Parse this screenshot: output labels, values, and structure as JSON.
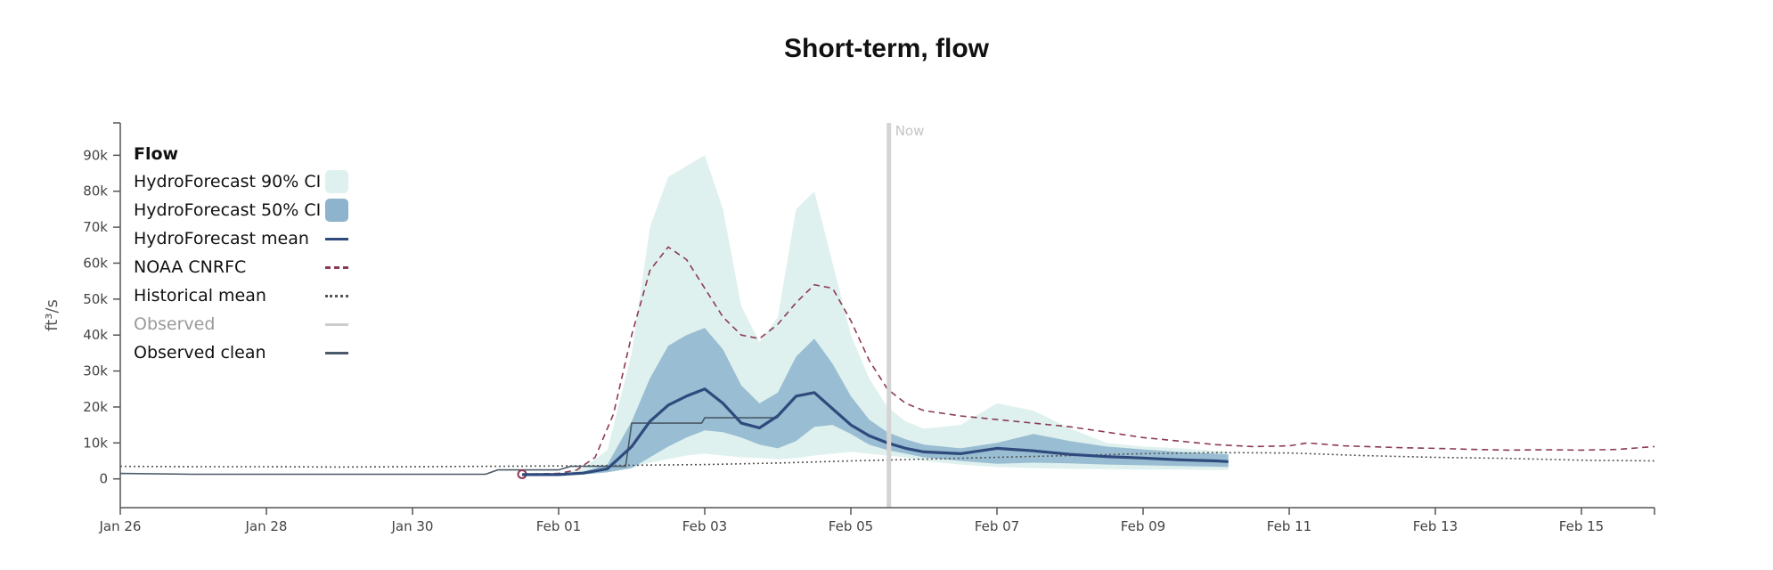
{
  "title": "Short-term, flow",
  "colors": {
    "ci90": "#dff1ee",
    "ci50": "#8db4cc",
    "mean": "#2f4a7c",
    "noaa": "#8b3a55",
    "historical": "#555555",
    "observed": "#cccccc",
    "observed_clean": "#4a5a68",
    "now_line": "#d4d4d4",
    "axis": "#555555"
  },
  "legend": {
    "title": "Flow",
    "items": [
      {
        "label": "HydroForecast 90% CI",
        "style": "box-light"
      },
      {
        "label": "HydroForecast 50% CI",
        "style": "box-dark"
      },
      {
        "label": "HydroForecast mean",
        "style": "solid"
      },
      {
        "label": "NOAA CNRFC",
        "style": "dashed"
      },
      {
        "label": "Historical mean",
        "style": "dotted"
      },
      {
        "label": "Observed",
        "style": "solid-light"
      },
      {
        "label": "Observed clean",
        "style": "solid-dark"
      }
    ]
  },
  "chart_data": {
    "type": "line",
    "title": "Short-term, flow",
    "ylabel": "ft³/s",
    "xlabel": "",
    "xlim": [
      "2024-01-26",
      "2024-02-16"
    ],
    "ylim": [
      -8000,
      99000
    ],
    "y_ticks": [
      0,
      10000,
      20000,
      30000,
      40000,
      50000,
      60000,
      70000,
      80000,
      90000
    ],
    "y_tick_labels": [
      "0",
      "10k",
      "20k",
      "30k",
      "40k",
      "50k",
      "60k",
      "70k",
      "80k",
      "90k"
    ],
    "x_ticks": [
      "2024-01-26",
      "2024-01-28",
      "2024-01-30",
      "2024-02-01",
      "2024-02-03",
      "2024-02-05",
      "2024-02-07",
      "2024-02-09",
      "2024-02-11",
      "2024-02-13",
      "2024-02-15"
    ],
    "x_tick_labels": [
      "Jan 26",
      "Jan 28",
      "Jan 30",
      "Feb 01",
      "Feb 03",
      "Feb 05",
      "Feb 07",
      "Feb 09",
      "Feb 11",
      "Feb 13",
      "Feb 15"
    ],
    "now": {
      "x": "2024-02-05T12:30",
      "label": "Now"
    },
    "legend_position": "top-left",
    "grid": false,
    "series": [
      {
        "name": "HydroForecast 90% CI",
        "kind": "band",
        "x": [
          "2024-01-31T12:00",
          "2024-02-01T00:00",
          "2024-02-01T08:00",
          "2024-02-01T16:00",
          "2024-02-02T00:00",
          "2024-02-02T06:00",
          "2024-02-02T12:00",
          "2024-02-02T18:00",
          "2024-02-03T00:00",
          "2024-02-03T06:00",
          "2024-02-03T12:00",
          "2024-02-03T18:00",
          "2024-02-04T00:00",
          "2024-02-04T06:00",
          "2024-02-04T12:00",
          "2024-02-04T18:00",
          "2024-02-05T00:00",
          "2024-02-05T06:00",
          "2024-02-05T12:00",
          "2024-02-05T18:00",
          "2024-02-06T00:00",
          "2024-02-06T12:00",
          "2024-02-07T00:00",
          "2024-02-07T12:00",
          "2024-02-08T00:00",
          "2024-02-08T12:00",
          "2024-02-09T00:00",
          "2024-02-09T12:00",
          "2024-02-10T00:00",
          "2024-02-10T04:00"
        ],
        "lower": [
          1000,
          1000,
          1500,
          2000,
          3000,
          4500,
          5500,
          6500,
          7000,
          6500,
          6000,
          5800,
          5500,
          5800,
          6500,
          7000,
          7500,
          7000,
          6500,
          6000,
          5000,
          4000,
          3300,
          3000,
          2800,
          2700,
          2600,
          2600,
          2500,
          2500
        ],
        "upper": [
          1000,
          1500,
          3000,
          8000,
          35000,
          70000,
          84000,
          87000,
          90000,
          75000,
          48000,
          38000,
          45000,
          75000,
          80000,
          60000,
          40000,
          28000,
          20000,
          16000,
          14000,
          15000,
          21000,
          19000,
          14000,
          10000,
          9000,
          8500,
          7800,
          7500
        ]
      },
      {
        "name": "HydroForecast 50% CI",
        "kind": "band",
        "x": [
          "2024-01-31T12:00",
          "2024-02-01T00:00",
          "2024-02-01T08:00",
          "2024-02-01T16:00",
          "2024-02-02T00:00",
          "2024-02-02T06:00",
          "2024-02-02T12:00",
          "2024-02-02T18:00",
          "2024-02-03T00:00",
          "2024-02-03T06:00",
          "2024-02-03T12:00",
          "2024-02-03T18:00",
          "2024-02-04T00:00",
          "2024-02-04T06:00",
          "2024-02-04T12:00",
          "2024-02-04T18:00",
          "2024-02-05T00:00",
          "2024-02-05T06:00",
          "2024-02-05T12:00",
          "2024-02-05T18:00",
          "2024-02-06T00:00",
          "2024-02-06T12:00",
          "2024-02-07T00:00",
          "2024-02-07T12:00",
          "2024-02-08T00:00",
          "2024-02-08T12:00",
          "2024-02-09T00:00",
          "2024-02-09T12:00",
          "2024-02-10T00:00",
          "2024-02-10T04:00"
        ],
        "lower": [
          1000,
          1000,
          1200,
          1800,
          3000,
          6000,
          9000,
          11500,
          13500,
          13000,
          11500,
          9500,
          8500,
          10500,
          14500,
          15000,
          12500,
          9500,
          8000,
          7000,
          6000,
          5000,
          4200,
          4500,
          4300,
          4000,
          3800,
          3600,
          3400,
          3300
        ],
        "upper": [
          1000,
          1200,
          2000,
          4000,
          16000,
          28000,
          37000,
          40000,
          42000,
          36000,
          26000,
          21000,
          24000,
          34000,
          39000,
          32000,
          23000,
          16500,
          13000,
          11000,
          9500,
          8500,
          10000,
          12500,
          10500,
          9000,
          8200,
          7500,
          7000,
          6800
        ]
      },
      {
        "name": "HydroForecast mean",
        "kind": "line",
        "x": [
          "2024-01-31T12:00",
          "2024-02-01T00:00",
          "2024-02-01T08:00",
          "2024-02-01T16:00",
          "2024-02-02T00:00",
          "2024-02-02T06:00",
          "2024-02-02T12:00",
          "2024-02-02T18:00",
          "2024-02-03T00:00",
          "2024-02-03T06:00",
          "2024-02-03T12:00",
          "2024-02-03T18:00",
          "2024-02-04T00:00",
          "2024-02-04T06:00",
          "2024-02-04T12:00",
          "2024-02-04T18:00",
          "2024-02-05T00:00",
          "2024-02-05T06:00",
          "2024-02-05T12:00",
          "2024-02-05T18:00",
          "2024-02-06T00:00",
          "2024-02-06T12:00",
          "2024-02-07T00:00",
          "2024-02-07T12:00",
          "2024-02-08T00:00",
          "2024-02-08T12:00",
          "2024-02-09T00:00",
          "2024-02-09T12:00",
          "2024-02-10T00:00",
          "2024-02-10T04:00"
        ],
        "y": [
          1200,
          1200,
          1600,
          2800,
          9000,
          16000,
          20500,
          23000,
          25000,
          21000,
          15500,
          14200,
          17500,
          23000,
          24000,
          19500,
          15000,
          12000,
          10000,
          8500,
          7500,
          7000,
          8500,
          7800,
          6800,
          6200,
          5800,
          5300,
          5000,
          4800
        ]
      },
      {
        "name": "NOAA CNRFC",
        "kind": "line",
        "x": [
          "2024-01-31T12:00",
          "2024-02-01T00:00",
          "2024-02-01T06:00",
          "2024-02-01T12:00",
          "2024-02-01T18:00",
          "2024-02-02T00:00",
          "2024-02-02T06:00",
          "2024-02-02T12:00",
          "2024-02-02T18:00",
          "2024-02-03T00:00",
          "2024-02-03T06:00",
          "2024-02-03T12:00",
          "2024-02-03T18:00",
          "2024-02-04T00:00",
          "2024-02-04T06:00",
          "2024-02-04T12:00",
          "2024-02-04T18:00",
          "2024-02-05T00:00",
          "2024-02-05T06:00",
          "2024-02-05T12:00",
          "2024-02-05T18:00",
          "2024-02-06T00:00",
          "2024-02-06T12:00",
          "2024-02-07T00:00",
          "2024-02-07T12:00",
          "2024-02-08T00:00",
          "2024-02-08T12:00",
          "2024-02-09T00:00",
          "2024-02-09T12:00",
          "2024-02-10T00:00",
          "2024-02-10T12:00",
          "2024-02-11T00:00",
          "2024-02-11T06:00",
          "2024-02-11T18:00",
          "2024-02-12T12:00",
          "2024-02-13T00:00",
          "2024-02-13T12:00",
          "2024-02-14T00:00",
          "2024-02-14T12:00",
          "2024-02-15T00:00",
          "2024-02-15T12:00",
          "2024-02-16T00:00"
        ],
        "y": [
          1300,
          1500,
          2500,
          6000,
          18000,
          40000,
          58000,
          64500,
          61000,
          53000,
          45000,
          40000,
          39000,
          43000,
          49000,
          54000,
          53000,
          44000,
          33000,
          25000,
          21000,
          19000,
          17500,
          16500,
          15500,
          14500,
          13000,
          11500,
          10500,
          9500,
          9000,
          9200,
          10000,
          9200,
          8700,
          8500,
          8200,
          8000,
          8100,
          8000,
          8200,
          9000
        ]
      },
      {
        "name": "Historical mean",
        "kind": "line",
        "x": [
          "2024-01-26",
          "2024-01-27",
          "2024-01-28",
          "2024-01-29",
          "2024-01-30",
          "2024-01-31",
          "2024-02-01",
          "2024-02-02",
          "2024-02-03",
          "2024-02-04",
          "2024-02-05",
          "2024-02-06",
          "2024-02-07",
          "2024-02-08",
          "2024-02-09",
          "2024-02-10",
          "2024-02-11",
          "2024-02-12",
          "2024-02-13",
          "2024-02-14",
          "2024-02-15",
          "2024-02-16"
        ],
        "y": [
          3500,
          3400,
          3400,
          3300,
          3400,
          3500,
          3600,
          3800,
          4000,
          4400,
          5000,
          5500,
          6000,
          6500,
          7000,
          7300,
          7200,
          6500,
          6000,
          5700,
          5200,
          5000
        ]
      },
      {
        "name": "Observed clean",
        "kind": "line",
        "x": [
          "2024-01-26",
          "2024-01-27",
          "2024-01-28",
          "2024-01-29",
          "2024-01-30",
          "2024-01-31",
          "2024-01-31T04:00",
          "2024-01-31T08:00",
          "2024-02-01",
          "2024-02-01T04:00",
          "2024-02-01T22:00",
          "2024-02-02T00:00",
          "2024-02-02T23:00",
          "2024-02-03T00:00",
          "2024-02-04T00:00"
        ],
        "y": [
          1500,
          1300,
          1300,
          1300,
          1300,
          1300,
          2500,
          2500,
          2500,
          3500,
          3500,
          15500,
          15500,
          17000,
          17000
        ]
      }
    ]
  }
}
